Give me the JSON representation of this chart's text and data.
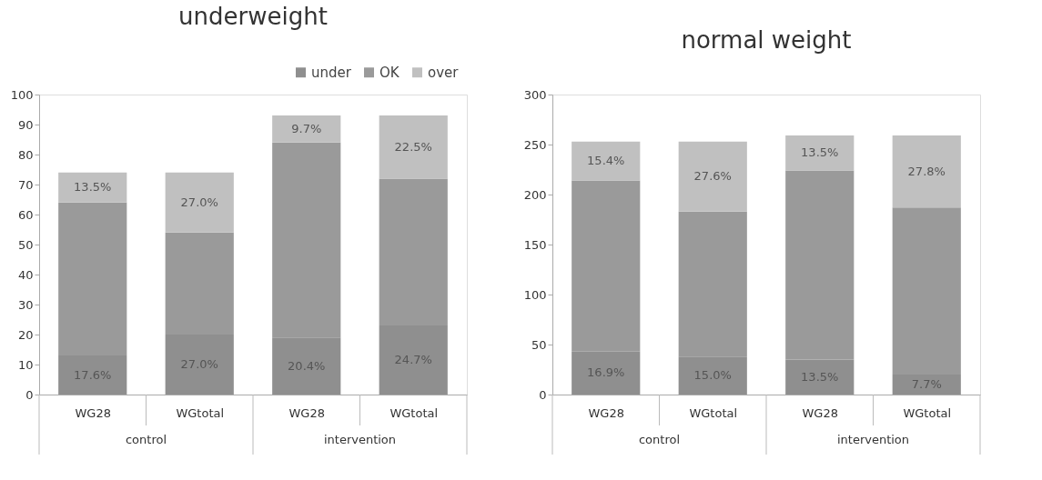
{
  "chart_data": [
    {
      "type": "bar",
      "title": "underweight",
      "stacked": true,
      "categories": [
        "WG28",
        "WGtotal",
        "WG28",
        "WGtotal"
      ],
      "annotations": [
        "control",
        "intervention",
        "17.6%",
        "27.0%",
        "20.4%",
        "24.7%",
        "13.5%",
        "27.0%",
        "9.7%",
        "22.5%"
      ],
      "series": [
        {
          "name": "under",
          "color": "#8f8f8f",
          "values": [
            13,
            20,
            19,
            23
          ]
        },
        {
          "name": "OK",
          "color": "#9a9a9a",
          "values": [
            51,
            34,
            65,
            49
          ]
        },
        {
          "name": "over",
          "color": "#c0c0c0",
          "values": [
            10,
            20,
            9,
            21
          ]
        }
      ],
      "ylim": [
        0,
        100
      ],
      "yticks": [
        0,
        10,
        20,
        30,
        40,
        50,
        60,
        70,
        80,
        90,
        100
      ],
      "legend": "top right"
    },
    {
      "type": "bar",
      "title": "normal weight",
      "stacked": true,
      "categories": [
        "WG28",
        "WGtotal",
        "WG28",
        "WGtotal"
      ],
      "annotations": [
        "control",
        "intervention",
        "16.9%",
        "15.0%",
        "13.5%",
        "7.7%",
        "15.4%",
        "27.6%",
        "13.5%",
        "27.8%"
      ],
      "series": [
        {
          "color": "#8f8f8f",
          "values": [
            43,
            38,
            35,
            20
          ]
        },
        {
          "color": "#9a9a9a",
          "values": [
            171,
            145,
            189,
            167
          ]
        },
        {
          "color": "#c0c0c0",
          "values": [
            39,
            70,
            35,
            72
          ]
        }
      ],
      "ylim": [
        0,
        300
      ],
      "yticks": [
        0,
        50,
        100,
        150,
        200,
        250,
        300
      ]
    }
  ]
}
